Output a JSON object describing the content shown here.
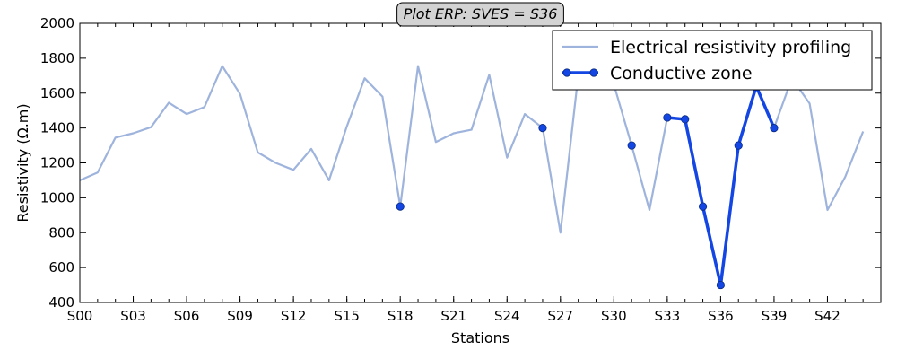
{
  "chart_data": {
    "type": "line",
    "title": "Plot ERP: SVES = S36",
    "xlabel": "Stations",
    "ylabel": "Resistivity (Ω.m)",
    "ylim": [
      400,
      2000
    ],
    "yticks": [
      400,
      600,
      800,
      1000,
      1200,
      1400,
      1600,
      1800,
      2000
    ],
    "xlim": [
      0,
      45
    ],
    "xtick_positions": [
      0,
      3,
      6,
      9,
      12,
      15,
      18,
      21,
      24,
      27,
      30,
      33,
      36,
      39,
      42
    ],
    "xtick_labels": [
      "S00",
      "S03",
      "S06",
      "S09",
      "S12",
      "S15",
      "S18",
      "S21",
      "S24",
      "S27",
      "S30",
      "S33",
      "S36",
      "S39",
      "S42"
    ],
    "legend_position": "top-right",
    "grid": false,
    "series": [
      {
        "name": "Electrical resistivity profiling",
        "color": "#9fb4dc",
        "marker": "none",
        "x": [
          0,
          1,
          2,
          3,
          4,
          5,
          6,
          7,
          8,
          9,
          10,
          11,
          12,
          13,
          14,
          15,
          16,
          17,
          18,
          19,
          20,
          21,
          22,
          23,
          24,
          25,
          26,
          27,
          28,
          29,
          30,
          31,
          32,
          33,
          34,
          35,
          36,
          37,
          38,
          39,
          40,
          41,
          42,
          43,
          44
        ],
        "y": [
          1100,
          1145,
          1345,
          1370,
          1405,
          1545,
          1480,
          1520,
          1755,
          1595,
          1260,
          1200,
          1160,
          1280,
          1100,
          1410,
          1685,
          1580,
          950,
          1755,
          1320,
          1370,
          1390,
          1705,
          1230,
          1480,
          1400,
          800,
          1700,
          1770,
          1650,
          1300,
          930,
          1460,
          1450,
          950,
          500,
          1300,
          1640,
          1400,
          1685,
          1540,
          930,
          1120,
          1380
        ]
      },
      {
        "name": "Conductive zone",
        "color": "#1346e3",
        "marker": "circle",
        "segments": [
          {
            "x": [
              18
            ],
            "y": [
              950
            ]
          },
          {
            "x": [
              26
            ],
            "y": [
              1400
            ]
          },
          {
            "x": [
              31
            ],
            "y": [
              1300
            ]
          },
          {
            "x": [
              33,
              34,
              35,
              36,
              37,
              38,
              39
            ],
            "y": [
              1460,
              1450,
              950,
              500,
              1300,
              1640,
              1400
            ]
          }
        ]
      }
    ]
  }
}
